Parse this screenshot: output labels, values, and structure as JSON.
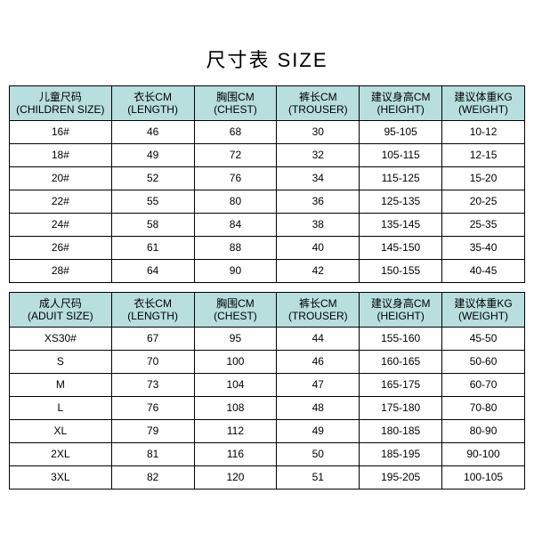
{
  "title": "尺寸表 SIZE",
  "header_bg": "#b8dede",
  "children": {
    "columns": [
      {
        "zh": "儿童尺码",
        "en": "(CHILDREN SIZE)"
      },
      {
        "zh": "衣长CM",
        "en": "(LENGTH)"
      },
      {
        "zh": "胸围CM",
        "en": "(CHEST)"
      },
      {
        "zh": "裤长CM",
        "en": "(TROUSER)"
      },
      {
        "zh": "建议身高CM",
        "en": "(HEIGHT)"
      },
      {
        "zh": "建议体重KG",
        "en": "(WEIGHT)"
      }
    ],
    "rows": [
      [
        "16#",
        "46",
        "68",
        "30",
        "95-105",
        "10-12"
      ],
      [
        "18#",
        "49",
        "72",
        "32",
        "105-115",
        "12-15"
      ],
      [
        "20#",
        "52",
        "76",
        "34",
        "115-125",
        "15-20"
      ],
      [
        "22#",
        "55",
        "80",
        "36",
        "125-135",
        "20-25"
      ],
      [
        "24#",
        "58",
        "84",
        "38",
        "135-145",
        "25-35"
      ],
      [
        "26#",
        "61",
        "88",
        "40",
        "145-150",
        "35-40"
      ],
      [
        "28#",
        "64",
        "90",
        "42",
        "150-155",
        "40-45"
      ]
    ]
  },
  "adult": {
    "columns": [
      {
        "zh": "成人尺码",
        "en": "(ADUIT SIZE)"
      },
      {
        "zh": "衣长CM",
        "en": "(LENGTH)"
      },
      {
        "zh": "胸围CM",
        "en": "(CHEST)"
      },
      {
        "zh": "裤长CM",
        "en": "(TROUSER)"
      },
      {
        "zh": "建议身高CM",
        "en": "(HEIGHT)"
      },
      {
        "zh": "建议体重KG",
        "en": "(WEIGHT)"
      }
    ],
    "rows": [
      [
        "XS30#",
        "67",
        "95",
        "44",
        "155-160",
        "45-50"
      ],
      [
        "S",
        "70",
        "100",
        "46",
        "160-165",
        "50-60"
      ],
      [
        "M",
        "73",
        "104",
        "47",
        "165-175",
        "60-70"
      ],
      [
        "L",
        "76",
        "108",
        "48",
        "175-180",
        "70-80"
      ],
      [
        "XL",
        "79",
        "112",
        "49",
        "180-185",
        "80-90"
      ],
      [
        "2XL",
        "81",
        "116",
        "50",
        "185-195",
        "90-100"
      ],
      [
        "3XL",
        "82",
        "120",
        "51",
        "195-205",
        "100-105"
      ]
    ]
  }
}
